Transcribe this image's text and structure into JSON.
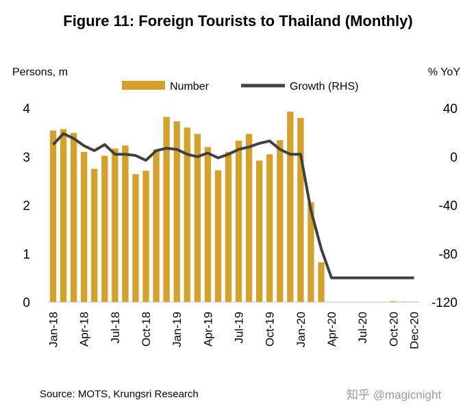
{
  "title": "Figure 11: Foreign Tourists  to Thailand (Monthly)",
  "source": "Source: MOTS, Krungsri Research",
  "watermark": "知乎 @magicnight",
  "chart_data": {
    "type": "bar+line",
    "left_axis_label": "Persons, m",
    "right_axis_label": "% YoY",
    "legend": {
      "bar": "Number",
      "line": "Growth (RHS)",
      "placement": "top-center"
    },
    "colors": {
      "bar": "#d4a22a",
      "line": "#404040",
      "axis": "#bfbfbf"
    },
    "left_ylim": [
      0,
      4
    ],
    "left_ticks": [
      "0",
      "1",
      "2",
      "3",
      "4"
    ],
    "right_ylim": [
      -120,
      40
    ],
    "right_ticks": [
      "-120",
      "-80",
      "-40",
      "0",
      "40"
    ],
    "x_tick_labels": [
      {
        "index": 0,
        "label": "Jan-18"
      },
      {
        "index": 3,
        "label": "Apr-18"
      },
      {
        "index": 6,
        "label": "Jul-18"
      },
      {
        "index": 9,
        "label": "Oct-18"
      },
      {
        "index": 12,
        "label": "Jan-19"
      },
      {
        "index": 15,
        "label": "Apr-19"
      },
      {
        "index": 18,
        "label": "Jul-19"
      },
      {
        "index": 21,
        "label": "Oct-19"
      },
      {
        "index": 24,
        "label": "Jan-20"
      },
      {
        "index": 27,
        "label": "Apr-20"
      },
      {
        "index": 30,
        "label": "Jul-20"
      },
      {
        "index": 33,
        "label": "Oct-20"
      },
      {
        "index": 35,
        "label": "Dec-20"
      }
    ],
    "months": [
      "Jan-18",
      "Feb-18",
      "Mar-18",
      "Apr-18",
      "May-18",
      "Jun-18",
      "Jul-18",
      "Aug-18",
      "Sep-18",
      "Oct-18",
      "Nov-18",
      "Dec-18",
      "Jan-19",
      "Feb-19",
      "Mar-19",
      "Apr-19",
      "May-19",
      "Jun-19",
      "Jul-19",
      "Aug-19",
      "Sep-19",
      "Oct-19",
      "Nov-19",
      "Dec-19",
      "Jan-20",
      "Feb-20",
      "Mar-20",
      "Apr-20",
      "May-20",
      "Jun-20",
      "Jul-20",
      "Aug-20",
      "Sep-20",
      "Oct-20",
      "Nov-20",
      "Dec-20"
    ],
    "number": [
      3.54,
      3.57,
      3.49,
      3.1,
      2.75,
      3.02,
      3.17,
      3.23,
      2.64,
      2.71,
      3.15,
      3.82,
      3.73,
      3.6,
      3.47,
      3.2,
      2.72,
      3.1,
      3.33,
      3.47,
      2.92,
      3.05,
      3.34,
      3.93,
      3.8,
      2.06,
      0.82,
      0.0,
      0.0,
      0.0,
      0.0,
      0.0,
      0.0,
      0.02,
      0.01,
      0.01
    ],
    "growth_yoy": [
      10,
      19,
      15,
      9,
      5,
      10,
      2,
      2,
      1,
      -3,
      5,
      7,
      6,
      2,
      0,
      3,
      -1,
      2,
      6,
      8,
      11,
      13,
      6,
      2,
      2,
      -44,
      -76,
      -100,
      -100,
      -100,
      -100,
      -100,
      -100,
      -100,
      -100,
      -100
    ]
  }
}
